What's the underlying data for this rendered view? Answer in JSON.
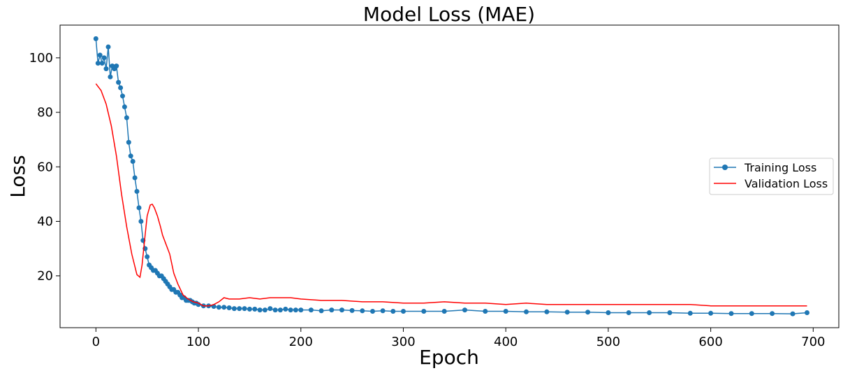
{
  "chart_data": {
    "type": "line",
    "title": "Model Loss (MAE)",
    "xlabel": "Epoch",
    "ylabel": "Loss",
    "xlim": [
      -35,
      725
    ],
    "ylim": [
      1,
      112
    ],
    "xticks": [
      0,
      100,
      200,
      300,
      400,
      500,
      600,
      700
    ],
    "yticks": [
      20,
      40,
      60,
      80,
      100
    ],
    "grid": false,
    "legend_position": "center-right",
    "series": [
      {
        "name": "Training Loss",
        "color": "#1f77b4",
        "marker": "circle",
        "x": [
          0,
          2,
          4,
          6,
          8,
          10,
          12,
          14,
          16,
          18,
          20,
          22,
          24,
          26,
          28,
          30,
          32,
          34,
          36,
          38,
          40,
          42,
          44,
          46,
          48,
          50,
          52,
          54,
          56,
          58,
          60,
          62,
          64,
          66,
          68,
          70,
          72,
          74,
          76,
          78,
          80,
          82,
          84,
          86,
          88,
          90,
          92,
          94,
          96,
          98,
          100,
          105,
          110,
          115,
          120,
          125,
          130,
          135,
          140,
          145,
          150,
          155,
          160,
          165,
          170,
          175,
          180,
          185,
          190,
          195,
          200,
          210,
          220,
          230,
          240,
          250,
          260,
          270,
          280,
          290,
          300,
          320,
          340,
          360,
          380,
          400,
          420,
          440,
          460,
          480,
          500,
          520,
          540,
          560,
          580,
          600,
          620,
          640,
          660,
          680,
          694
        ],
        "values": [
          107,
          98,
          101,
          98,
          100,
          96,
          104,
          93,
          97,
          96,
          97,
          91,
          89,
          86,
          82,
          78,
          69,
          64,
          62,
          56,
          51,
          45,
          40,
          33,
          30,
          27,
          24,
          23,
          22,
          22,
          21,
          20,
          20,
          19,
          18,
          17,
          16,
          15,
          15,
          14,
          14,
          13,
          12,
          12,
          11,
          11,
          11,
          10.5,
          10,
          10,
          9.5,
          9,
          9,
          8.8,
          8.5,
          8.5,
          8.3,
          8,
          8,
          8,
          7.8,
          7.8,
          7.5,
          7.5,
          8,
          7.5,
          7.5,
          7.8,
          7.5,
          7.5,
          7.5,
          7.5,
          7.2,
          7.5,
          7.5,
          7.3,
          7.2,
          7,
          7.2,
          7,
          7,
          7,
          7,
          7.5,
          7,
          7,
          6.8,
          6.8,
          6.7,
          6.7,
          6.5,
          6.5,
          6.5,
          6.5,
          6.3,
          6.3,
          6.2,
          6.2,
          6.2,
          6.1,
          6.5
        ]
      },
      {
        "name": "Validation Loss",
        "color": "#ff0000",
        "marker": "none",
        "x": [
          0,
          5,
          10,
          15,
          20,
          25,
          30,
          35,
          40,
          43,
          45,
          48,
          50,
          53,
          55,
          57,
          60,
          63,
          65,
          68,
          72,
          76,
          80,
          85,
          90,
          95,
          100,
          105,
          110,
          115,
          120,
          125,
          130,
          140,
          150,
          160,
          170,
          180,
          190,
          200,
          220,
          240,
          260,
          280,
          300,
          320,
          340,
          360,
          380,
          400,
          420,
          440,
          460,
          480,
          500,
          520,
          540,
          560,
          580,
          600,
          620,
          640,
          660,
          680,
          694
        ],
        "values": [
          90.5,
          88,
          83,
          75,
          64,
          50,
          38,
          28,
          20.5,
          19.5,
          24,
          35,
          42,
          46,
          46.3,
          45,
          42,
          38,
          35,
          32,
          28,
          21,
          17,
          13,
          11.5,
          10.5,
          10,
          9,
          9,
          9.5,
          10.5,
          12,
          11.5,
          11.5,
          12,
          11.5,
          12,
          12,
          12,
          11.5,
          11,
          11,
          10.5,
          10.5,
          10,
          10,
          10.5,
          10,
          10,
          9.5,
          10,
          9.5,
          9.5,
          9.5,
          9.5,
          9.5,
          9.5,
          9.5,
          9.5,
          9,
          9,
          9,
          9,
          9,
          9
        ]
      }
    ]
  }
}
